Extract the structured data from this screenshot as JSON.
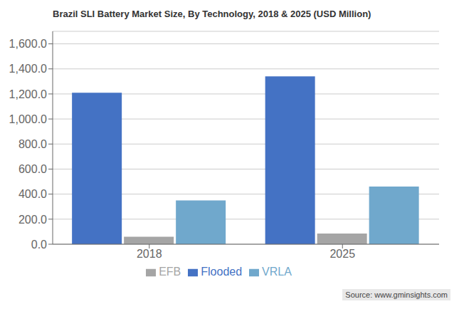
{
  "chart_data": {
    "type": "bar",
    "title": "Brazil SLI Battery Market Size, By Technology, 2018 & 2025 (USD Million)",
    "categories": [
      "2018",
      "2025"
    ],
    "series": [
      {
        "name": "Flooded",
        "color": "#4472C4",
        "values": [
          1210,
          1340
        ]
      },
      {
        "name": "EFB",
        "color": "#A5A5A5",
        "values": [
          60,
          85
        ]
      },
      {
        "name": "VRLA",
        "color": "#70A8CC",
        "values": [
          350,
          460
        ]
      }
    ],
    "ylim": [
      0,
      1700
    ],
    "yticks": [
      {
        "value": 0,
        "label": "0.0"
      },
      {
        "value": 200,
        "label": "200.0"
      },
      {
        "value": 400,
        "label": "400.0"
      },
      {
        "value": 600,
        "label": "600.0"
      },
      {
        "value": 800,
        "label": "800.0"
      },
      {
        "value": 1000,
        "label": "1,000.0"
      },
      {
        "value": 1200,
        "label": "1,200.0"
      },
      {
        "value": 1400,
        "label": "1,400.0"
      },
      {
        "value": 1600,
        "label": "1,600.0"
      }
    ],
    "grid": true,
    "legend": "bottom",
    "annotations": [
      "Source: www.gminsights.com"
    ]
  }
}
